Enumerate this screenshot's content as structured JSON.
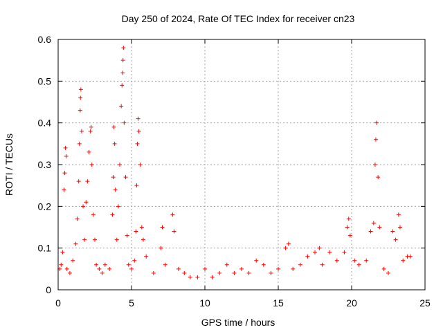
{
  "chart_data": {
    "type": "scatter",
    "title": "Day 250 of 2024, Rate Of TEC Index for receiver cn23",
    "xlabel": "GPS time / hours",
    "ylabel": "ROTI / TECUs",
    "xlim": [
      0,
      25
    ],
    "ylim": [
      0,
      0.6
    ],
    "xticks": [
      0,
      5,
      10,
      15,
      20,
      25
    ],
    "yticks": [
      0,
      0.1,
      0.2,
      0.3,
      0.4,
      0.5,
      0.6
    ],
    "xtick_labels": [
      "0",
      "5",
      "10",
      "15",
      "20",
      "25"
    ],
    "ytick_labels": [
      "0",
      "0.1",
      "0.2",
      "0.3",
      "0.4",
      "0.5",
      "0.6"
    ],
    "grid": true,
    "marker": "+",
    "marker_color": "#ff0000",
    "series": [
      {
        "name": "ROTI",
        "points": [
          [
            0.1,
            0.05
          ],
          [
            0.2,
            0.06
          ],
          [
            0.3,
            0.09
          ],
          [
            0.4,
            0.24
          ],
          [
            0.45,
            0.28
          ],
          [
            0.5,
            0.34
          ],
          [
            0.55,
            0.32
          ],
          [
            0.6,
            0.05
          ],
          [
            0.8,
            0.04
          ],
          [
            1.0,
            0.07
          ],
          [
            1.2,
            0.11
          ],
          [
            1.3,
            0.17
          ],
          [
            1.4,
            0.26
          ],
          [
            1.45,
            0.35
          ],
          [
            1.5,
            0.43
          ],
          [
            1.52,
            0.46
          ],
          [
            1.55,
            0.48
          ],
          [
            1.6,
            0.38
          ],
          [
            1.7,
            0.2
          ],
          [
            1.8,
            0.12
          ],
          [
            1.9,
            0.21
          ],
          [
            2.0,
            0.26
          ],
          [
            2.1,
            0.33
          ],
          [
            2.2,
            0.38
          ],
          [
            2.25,
            0.39
          ],
          [
            2.3,
            0.3
          ],
          [
            2.4,
            0.18
          ],
          [
            2.5,
            0.12
          ],
          [
            2.6,
            0.06
          ],
          [
            2.8,
            0.05
          ],
          [
            3.0,
            0.04
          ],
          [
            3.2,
            0.06
          ],
          [
            3.5,
            0.05
          ],
          [
            3.7,
            0.18
          ],
          [
            3.75,
            0.27
          ],
          [
            3.8,
            0.39
          ],
          [
            3.85,
            0.35
          ],
          [
            3.9,
            0.24
          ],
          [
            4.0,
            0.12
          ],
          [
            4.1,
            0.2
          ],
          [
            4.2,
            0.3
          ],
          [
            4.3,
            0.44
          ],
          [
            4.35,
            0.49
          ],
          [
            4.4,
            0.52
          ],
          [
            4.42,
            0.55
          ],
          [
            4.45,
            0.58
          ],
          [
            4.5,
            0.4
          ],
          [
            4.6,
            0.27
          ],
          [
            4.7,
            0.13
          ],
          [
            4.8,
            0.06
          ],
          [
            5.0,
            0.05
          ],
          [
            5.2,
            0.07
          ],
          [
            5.3,
            0.14
          ],
          [
            5.35,
            0.25
          ],
          [
            5.4,
            0.35
          ],
          [
            5.45,
            0.41
          ],
          [
            5.5,
            0.38
          ],
          [
            5.6,
            0.3
          ],
          [
            5.7,
            0.15
          ],
          [
            5.8,
            0.12
          ],
          [
            6.0,
            0.08
          ],
          [
            6.5,
            0.04
          ],
          [
            7.0,
            0.1
          ],
          [
            7.1,
            0.15
          ],
          [
            7.3,
            0.06
          ],
          [
            7.8,
            0.18
          ],
          [
            7.9,
            0.14
          ],
          [
            8.2,
            0.05
          ],
          [
            8.6,
            0.04
          ],
          [
            9.0,
            0.03
          ],
          [
            9.5,
            0.03
          ],
          [
            10.0,
            0.05
          ],
          [
            10.5,
            0.03
          ],
          [
            11.0,
            0.04
          ],
          [
            11.5,
            0.06
          ],
          [
            12.0,
            0.04
          ],
          [
            12.5,
            0.05
          ],
          [
            13.0,
            0.04
          ],
          [
            13.5,
            0.07
          ],
          [
            14.0,
            0.06
          ],
          [
            14.5,
            0.04
          ],
          [
            15.0,
            0.05
          ],
          [
            15.5,
            0.1
          ],
          [
            15.7,
            0.11
          ],
          [
            16.0,
            0.05
          ],
          [
            16.5,
            0.06
          ],
          [
            17.0,
            0.08
          ],
          [
            17.5,
            0.09
          ],
          [
            17.8,
            0.1
          ],
          [
            18.0,
            0.06
          ],
          [
            18.5,
            0.09
          ],
          [
            19.0,
            0.07
          ],
          [
            19.5,
            0.09
          ],
          [
            19.7,
            0.15
          ],
          [
            19.8,
            0.17
          ],
          [
            19.9,
            0.13
          ],
          [
            20.2,
            0.07
          ],
          [
            20.5,
            0.06
          ],
          [
            21.0,
            0.07
          ],
          [
            21.3,
            0.14
          ],
          [
            21.5,
            0.16
          ],
          [
            21.6,
            0.3
          ],
          [
            21.65,
            0.36
          ],
          [
            21.7,
            0.4
          ],
          [
            21.8,
            0.27
          ],
          [
            21.9,
            0.15
          ],
          [
            22.2,
            0.05
          ],
          [
            22.5,
            0.04
          ],
          [
            22.8,
            0.14
          ],
          [
            23.0,
            0.12
          ],
          [
            23.2,
            0.18
          ],
          [
            23.3,
            0.15
          ],
          [
            23.5,
            0.07
          ],
          [
            23.8,
            0.08
          ],
          [
            24.0,
            0.08
          ]
        ]
      }
    ]
  }
}
